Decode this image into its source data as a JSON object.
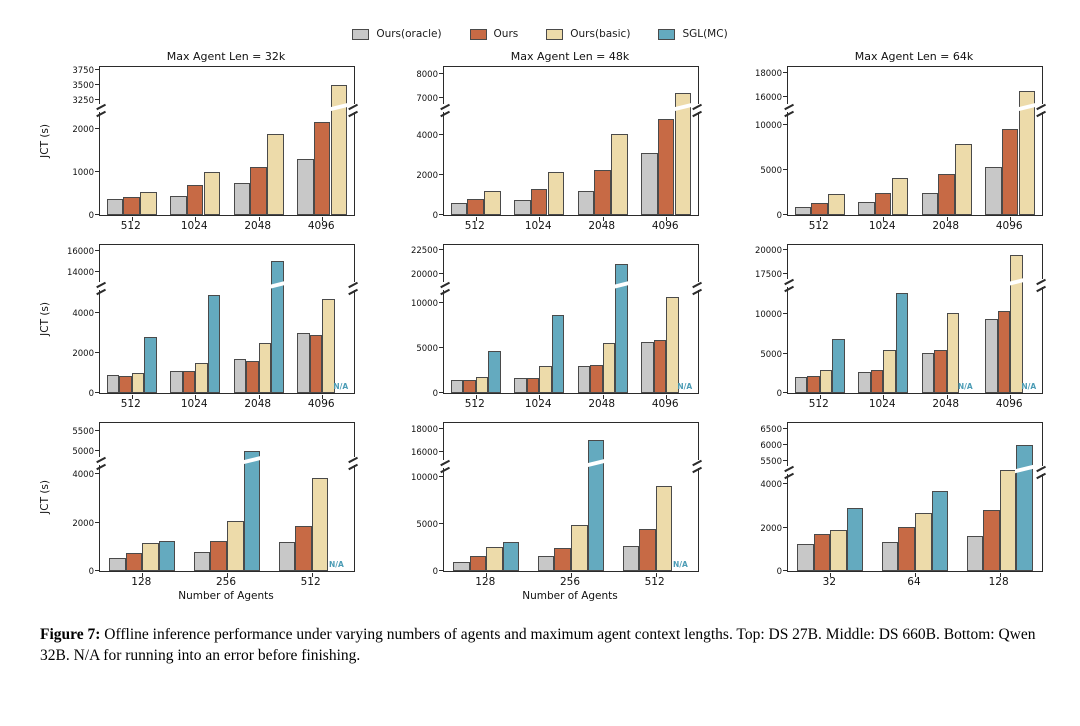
{
  "palette": {
    "Ours(oracle)": "#c8c8c8",
    "Ours": "#c76a45",
    "Ours(basic)": "#eddbaa",
    "SGL(MC)": "#64aabf",
    "edge": "#4a4a4a",
    "na_text": "#4b9cb5"
  },
  "na_label": "N/A",
  "legend": {
    "items": [
      {
        "name": "Ours(oracle)"
      },
      {
        "name": "Ours"
      },
      {
        "name": "Ours(basic)"
      },
      {
        "name": "SGL(MC)"
      }
    ]
  },
  "caption": {
    "label": "Figure 7:",
    "text": " Offline inference performance under varying numbers of agents and maximum agent context lengths. Top: DS 27B. Middle: DS 660B. Bottom: Qwen 32B. N/A for running into an error before finishing."
  },
  "chart_data": [
    {
      "type": "bar",
      "title": "Max Agent Len = 32k",
      "ylabel": "JCT (s)",
      "xlabel": "",
      "categories": [
        "512",
        "1024",
        "2048",
        "4096"
      ],
      "series": [
        {
          "name": "Ours(oracle)",
          "values": [
            380,
            450,
            740,
            1300
          ]
        },
        {
          "name": "Ours",
          "values": [
            420,
            700,
            1120,
            2150
          ]
        },
        {
          "name": "Ours(basic)",
          "values": [
            540,
            1000,
            1870,
            3500
          ]
        }
      ],
      "axis": {
        "lower_ticks": [
          0,
          1000,
          2000
        ],
        "upper_ticks": [
          3250,
          3500,
          3750
        ],
        "lower_max": 2400,
        "upper_min": 3150,
        "upper_max": 3800,
        "lower_frac": 0.7
      }
    },
    {
      "type": "bar",
      "title": "Max Agent Len = 48k",
      "ylabel": "",
      "xlabel": "",
      "categories": [
        "512",
        "1024",
        "2048",
        "4096"
      ],
      "series": [
        {
          "name": "Ours(oracle)",
          "values": [
            600,
            750,
            1200,
            3100
          ]
        },
        {
          "name": "Ours",
          "values": [
            800,
            1300,
            2250,
            4800
          ]
        },
        {
          "name": "Ours(basic)",
          "values": [
            1200,
            2150,
            4050,
            7200
          ]
        }
      ],
      "axis": {
        "lower_ticks": [
          0,
          2000,
          4000
        ],
        "upper_ticks": [
          7000,
          8000
        ],
        "lower_max": 5200,
        "upper_min": 6700,
        "upper_max": 8300,
        "lower_frac": 0.7
      }
    },
    {
      "type": "bar",
      "title": "Max Agent Len = 64k",
      "ylabel": "",
      "xlabel": "",
      "categories": [
        "512",
        "1024",
        "2048",
        "4096"
      ],
      "series": [
        {
          "name": "Ours(oracle)",
          "values": [
            900,
            1500,
            2400,
            5300
          ]
        },
        {
          "name": "Ours",
          "values": [
            1300,
            2400,
            4500,
            9500
          ]
        },
        {
          "name": "Ours(basic)",
          "values": [
            2300,
            4100,
            7900,
            16500
          ]
        }
      ],
      "axis": {
        "lower_ticks": [
          0,
          5000,
          10000
        ],
        "upper_ticks": [
          16000,
          18000
        ],
        "lower_max": 11500,
        "upper_min": 15300,
        "upper_max": 18500,
        "lower_frac": 0.7
      }
    },
    {
      "type": "bar",
      "title": "",
      "ylabel": "JCT (s)",
      "xlabel": "",
      "categories": [
        "512",
        "1024",
        "2048",
        "4096"
      ],
      "series": [
        {
          "name": "Ours(oracle)",
          "values": [
            900,
            1100,
            1700,
            3000
          ]
        },
        {
          "name": "Ours",
          "values": [
            850,
            1100,
            1600,
            2900
          ]
        },
        {
          "name": "Ours(basic)",
          "values": [
            1000,
            1500,
            2500,
            4700
          ]
        },
        {
          "name": "SGL(MC)",
          "values": [
            2800,
            4900,
            15000,
            null
          ]
        }
      ],
      "axis": {
        "lower_ticks": [
          0,
          2000,
          4000
        ],
        "upper_ticks": [
          14000,
          16000
        ],
        "lower_max": 5200,
        "upper_min": 13000,
        "upper_max": 16500,
        "lower_frac": 0.7
      }
    },
    {
      "type": "bar",
      "title": "",
      "ylabel": "",
      "xlabel": "",
      "categories": [
        "512",
        "1024",
        "2048",
        "4096"
      ],
      "series": [
        {
          "name": "Ours(oracle)",
          "values": [
            1400,
            1700,
            3000,
            5700
          ]
        },
        {
          "name": "Ours",
          "values": [
            1400,
            1700,
            3100,
            5900
          ]
        },
        {
          "name": "Ours(basic)",
          "values": [
            1800,
            3000,
            5600,
            10700
          ]
        },
        {
          "name": "SGL(MC)",
          "values": [
            4700,
            8700,
            21000,
            null
          ]
        }
      ],
      "axis": {
        "lower_ticks": [
          0,
          5000,
          10000
        ],
        "upper_ticks": [
          20000,
          22500
        ],
        "lower_max": 11500,
        "upper_min": 19000,
        "upper_max": 23000,
        "lower_frac": 0.7
      }
    },
    {
      "type": "bar",
      "title": "",
      "ylabel": "",
      "xlabel": "",
      "categories": [
        "512",
        "1024",
        "2048",
        "4096"
      ],
      "series": [
        {
          "name": "Ours(oracle)",
          "values": [
            2000,
            2600,
            5100,
            9400
          ]
        },
        {
          "name": "Ours",
          "values": [
            2200,
            2900,
            5500,
            10400
          ]
        },
        {
          "name": "Ours(basic)",
          "values": [
            2900,
            5400,
            10100,
            19500
          ]
        },
        {
          "name": "SGL(MC)",
          "values": [
            6800,
            12700,
            null,
            null
          ]
        }
      ],
      "axis": {
        "lower_ticks": [
          0,
          5000,
          10000
        ],
        "upper_ticks": [
          17500,
          20000
        ],
        "lower_max": 13500,
        "upper_min": 16800,
        "upper_max": 20500,
        "lower_frac": 0.72
      }
    },
    {
      "type": "bar",
      "title": "",
      "ylabel": "JCT (s)",
      "xlabel": "Number of Agents",
      "categories": [
        "128",
        "256",
        "512"
      ],
      "series": [
        {
          "name": "Ours(oracle)",
          "values": [
            550,
            800,
            1200
          ]
        },
        {
          "name": "Ours",
          "values": [
            750,
            1250,
            1850
          ]
        },
        {
          "name": "Ours(basic)",
          "values": [
            1150,
            2050,
            3850
          ]
        },
        {
          "name": "SGL(MC)",
          "values": [
            1250,
            5000,
            null
          ]
        }
      ],
      "axis": {
        "lower_ticks": [
          0,
          2000,
          4000
        ],
        "upper_ticks": [
          5000,
          5500
        ],
        "lower_max": 4400,
        "upper_min": 4800,
        "upper_max": 5700,
        "lower_frac": 0.72
      }
    },
    {
      "type": "bar",
      "title": "",
      "ylabel": "",
      "xlabel": "Number of Agents",
      "categories": [
        "128",
        "256",
        "512"
      ],
      "series": [
        {
          "name": "Ours(oracle)",
          "values": [
            1000,
            1600,
            2700
          ]
        },
        {
          "name": "Ours",
          "values": [
            1600,
            2400,
            4500
          ]
        },
        {
          "name": "Ours(basic)",
          "values": [
            2600,
            4900,
            9000
          ]
        },
        {
          "name": "SGL(MC)",
          "values": [
            3100,
            17000,
            null
          ]
        }
      ],
      "axis": {
        "lower_ticks": [
          0,
          5000,
          10000
        ],
        "upper_ticks": [
          16000,
          18000
        ],
        "lower_max": 11000,
        "upper_min": 15200,
        "upper_max": 18500,
        "lower_frac": 0.7
      }
    },
    {
      "type": "bar",
      "title": "",
      "ylabel": "",
      "xlabel": "",
      "categories": [
        "32",
        "64",
        "128"
      ],
      "series": [
        {
          "name": "Ours(oracle)",
          "values": [
            1250,
            1350,
            1600
          ]
        },
        {
          "name": "Ours",
          "values": [
            1700,
            2050,
            2800
          ]
        },
        {
          "name": "Ours(basic)",
          "values": [
            1900,
            2650,
            5000
          ]
        },
        {
          "name": "SGL(MC)",
          "values": [
            2900,
            3700,
            6000
          ]
        }
      ],
      "axis": {
        "lower_ticks": [
          0,
          2000,
          4000
        ],
        "upper_ticks": [
          5500,
          6000,
          6500
        ],
        "lower_max": 4500,
        "upper_min": 5300,
        "upper_max": 6700,
        "lower_frac": 0.66
      }
    }
  ]
}
